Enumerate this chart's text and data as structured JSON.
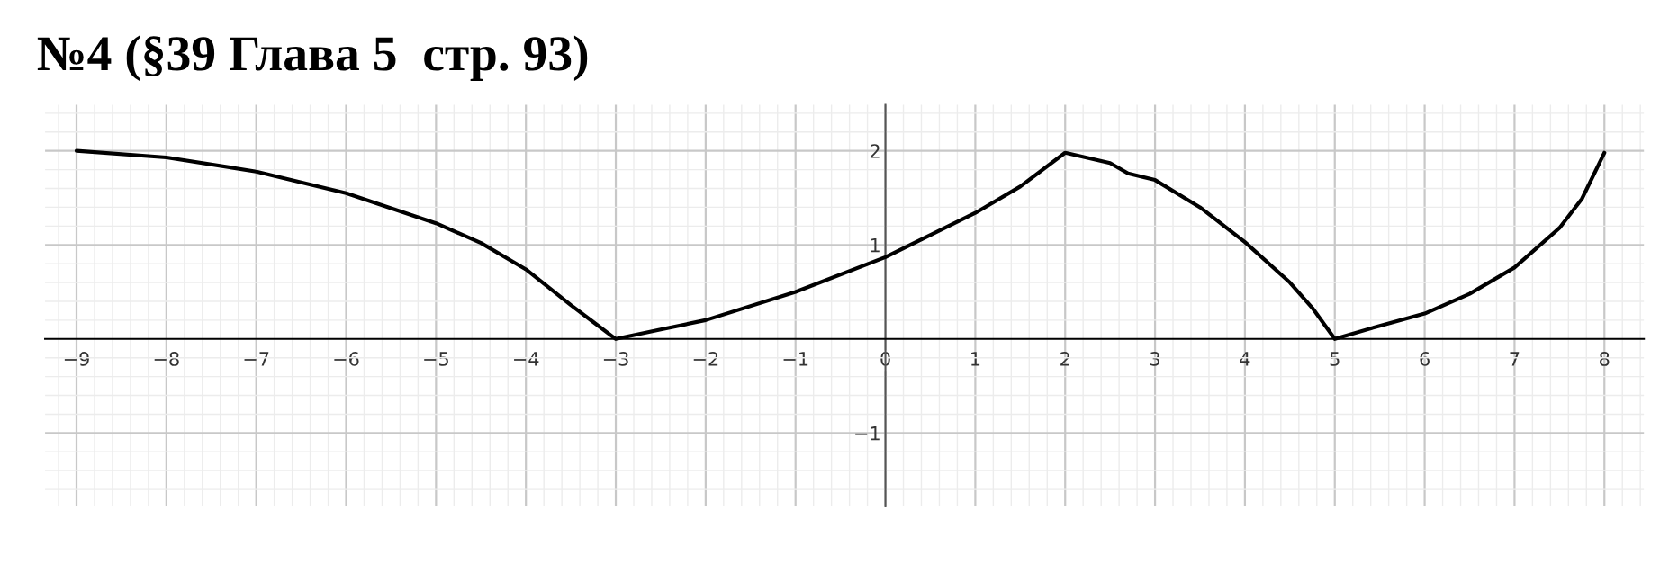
{
  "chart_data": {
    "type": "line",
    "title": "№4 (§39 Глава 5  стр. 93)",
    "series": [
      {
        "color": "#000000",
        "x": [
          -9,
          -8,
          -7,
          -6,
          -5,
          -4.5,
          -4,
          -3.5,
          -3.25,
          -3,
          -2.5,
          -2,
          -1,
          0,
          1,
          1.5,
          2,
          2.5,
          2.7,
          3,
          3.5,
          4,
          4.5,
          4.75,
          5,
          5.5,
          6,
          6.5,
          7,
          7.5,
          7.75,
          8
        ],
        "values": [
          2.0,
          1.93,
          1.78,
          1.55,
          1.23,
          1.02,
          0.74,
          0.36,
          0.18,
          0,
          0.1,
          0.2,
          0.5,
          0.87,
          1.34,
          1.62,
          1.98,
          1.87,
          1.76,
          1.69,
          1.4,
          1.03,
          0.6,
          0.33,
          0,
          0.14,
          0.27,
          0.48,
          0.76,
          1.18,
          1.49,
          1.98
        ]
      }
    ],
    "xlim": [
      -9.35,
      8.44
    ],
    "ylim": [
      -1.78,
      2.49
    ],
    "xticks": [
      {
        "value": -9,
        "label": "−9"
      },
      {
        "value": -8,
        "label": "−8"
      },
      {
        "value": -7,
        "label": "−7"
      },
      {
        "value": -6,
        "label": "−6"
      },
      {
        "value": -5,
        "label": "−5"
      },
      {
        "value": -4,
        "label": "−4"
      },
      {
        "value": -3,
        "label": "−3"
      },
      {
        "value": -2,
        "label": "−2"
      },
      {
        "value": -1,
        "label": "−1"
      },
      0,
      1,
      2,
      3,
      4,
      5,
      6,
      7,
      8
    ],
    "yticks": [
      {
        "value": -1,
        "label": "−1"
      },
      1,
      2
    ],
    "grid": true,
    "marker": "none",
    "line_style": "solid",
    "legend": false
  }
}
